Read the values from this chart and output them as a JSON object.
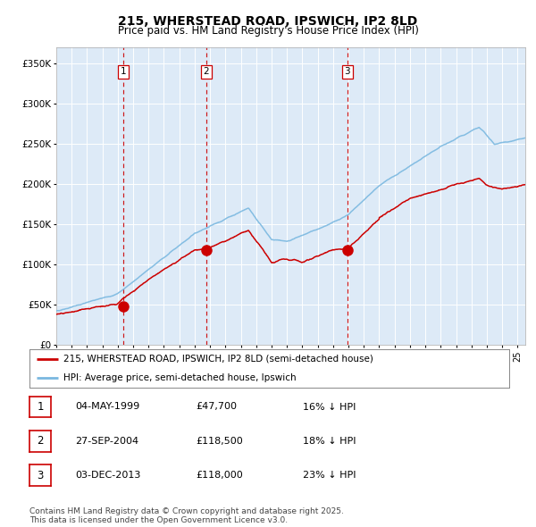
{
  "title": "215, WHERSTEAD ROAD, IPSWICH, IP2 8LD",
  "subtitle": "Price paid vs. HM Land Registry's House Price Index (HPI)",
  "title_fontsize": 10,
  "subtitle_fontsize": 8.5,
  "background_color": "#ffffff",
  "plot_bg_color": "#ddeaf7",
  "grid_color": "#ffffff",
  "hpi_color": "#7ab8e0",
  "price_color": "#cc0000",
  "vline_color": "#cc0000",
  "ylim": [
    0,
    370000
  ],
  "yticks": [
    0,
    50000,
    100000,
    150000,
    200000,
    250000,
    300000,
    350000
  ],
  "ytick_labels": [
    "£0",
    "£50K",
    "£100K",
    "£150K",
    "£200K",
    "£250K",
    "£300K",
    "£350K"
  ],
  "xmin": 1995,
  "xmax": 2025.5,
  "sale_dates": [
    1999.35,
    2004.74,
    2013.92
  ],
  "sale_prices": [
    47700,
    118500,
    118000
  ],
  "sale_labels": [
    "1",
    "2",
    "3"
  ],
  "legend_price_label": "215, WHERSTEAD ROAD, IPSWICH, IP2 8LD (semi-detached house)",
  "legend_hpi_label": "HPI: Average price, semi-detached house, Ipswich",
  "table_rows": [
    [
      "1",
      "04-MAY-1999",
      "£47,700",
      "16% ↓ HPI"
    ],
    [
      "2",
      "27-SEP-2004",
      "£118,500",
      "18% ↓ HPI"
    ],
    [
      "3",
      "03-DEC-2013",
      "£118,000",
      "23% ↓ HPI"
    ]
  ],
  "footer": "Contains HM Land Registry data © Crown copyright and database right 2025.\nThis data is licensed under the Open Government Licence v3.0."
}
